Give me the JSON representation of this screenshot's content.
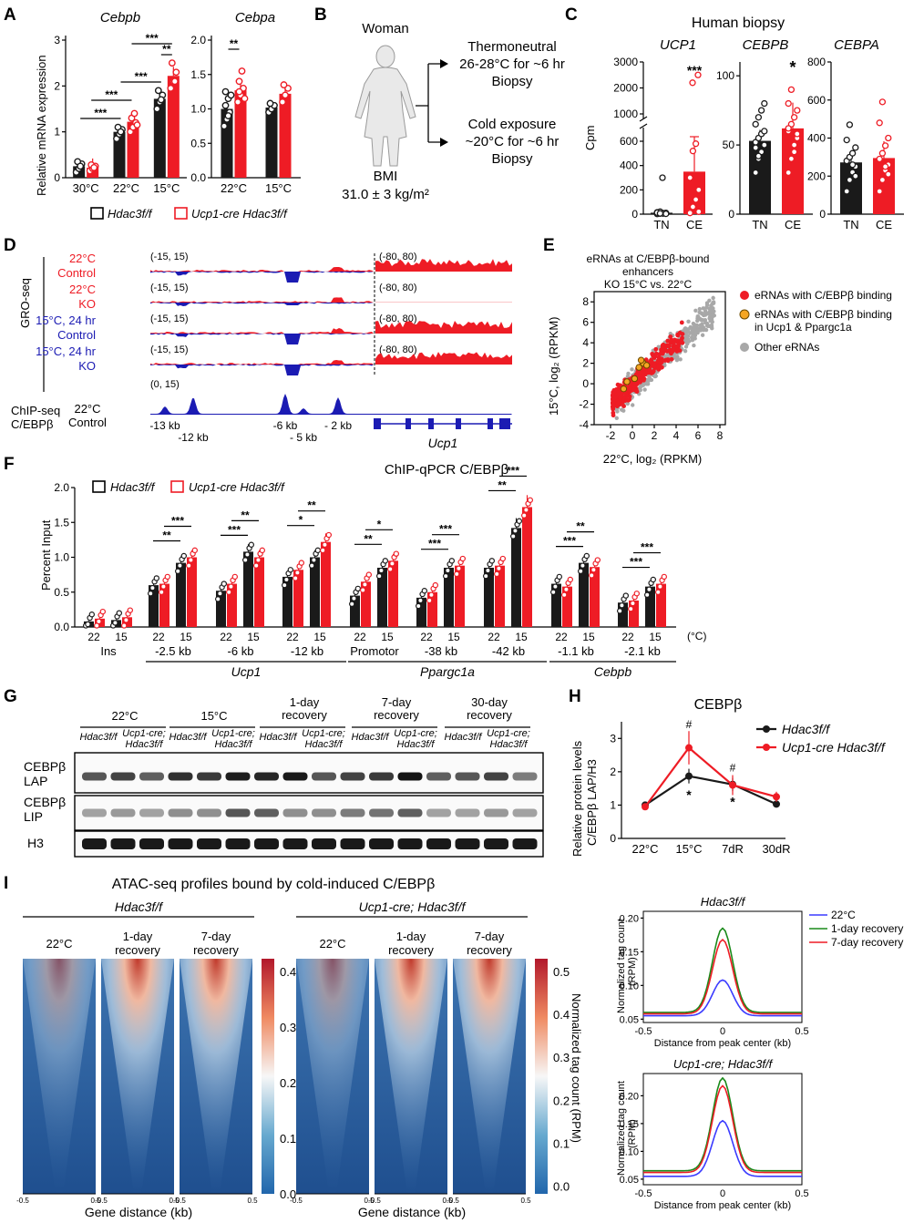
{
  "colors": {
    "black": "#1a1a1a",
    "red": "#ee1c25",
    "blue": "#1b1bb3",
    "grey": "#a8a8a8"
  },
  "panelA": {
    "letter": "A",
    "ylabel": "Relative mRNA expression",
    "legend": [
      "Hdac3f/f",
      "Ucp1-cre Hdac3f/f"
    ],
    "cebpb": {
      "title": "Cebpb",
      "yticks": [
        "0",
        "1",
        "2",
        "3"
      ],
      "ylim": [
        0,
        3
      ],
      "groups": [
        "30°C",
        "22°C",
        "15°C"
      ],
      "black": [
        0.25,
        1.0,
        1.72
      ],
      "red": [
        0.22,
        1.22,
        2.22
      ],
      "black_pts": [
        [
          0.12,
          0.2,
          0.3,
          0.35,
          0.25
        ],
        [
          0.85,
          0.95,
          1.05,
          1.1,
          1.0
        ],
        [
          1.5,
          1.65,
          1.8,
          1.9,
          1.7
        ]
      ],
      "red_pts": [
        [
          0.15,
          0.2,
          0.25,
          0.28,
          0.22
        ],
        [
          1.0,
          1.1,
          1.2,
          1.3,
          1.4,
          1.15
        ],
        [
          1.95,
          2.1,
          2.3,
          2.5,
          2.1
        ]
      ],
      "sig": [
        "***",
        "***",
        "***",
        "***",
        "**"
      ]
    },
    "cebpa": {
      "title": "Cebpa",
      "yticks": [
        "0.0",
        "0.5",
        "1.0",
        "1.5",
        "2.0"
      ],
      "ylim": [
        0,
        2
      ],
      "groups": [
        "22°C",
        "15°C"
      ],
      "black": [
        1.0,
        1.02
      ],
      "red": [
        1.27,
        1.22
      ],
      "black_pts": [
        [
          0.75,
          0.85,
          0.95,
          1.05,
          1.15,
          1.2,
          1.25,
          0.9
        ],
        [
          0.95,
          1.0,
          1.05,
          1.08
        ]
      ],
      "red_pts": [
        [
          1.1,
          1.2,
          1.3,
          1.4,
          1.55,
          1.15,
          1.25
        ],
        [
          1.1,
          1.2,
          1.3,
          1.35
        ]
      ],
      "sig": [
        "**"
      ]
    }
  },
  "panelB": {
    "letter": "B",
    "subject": "Woman",
    "bmi_label": "BMI",
    "bmi_value": "31.0 ± 3 kg/m²",
    "arm1": [
      "Thermoneutral",
      "26-28°C for ~6 hr",
      "Biopsy"
    ],
    "arm2": [
      "Cold exposure",
      "~20°C for ~6 hr",
      "Biopsy"
    ]
  },
  "panelC": {
    "letter": "C",
    "title": "Human biopsy",
    "ylabel": "Cpm",
    "groups": [
      "TN",
      "CE"
    ],
    "ucp1": {
      "title": "UCP1",
      "yticks_low": [
        "0",
        "200",
        "400",
        "600"
      ],
      "yticks_high": [
        "1000",
        "2000",
        "3000"
      ],
      "values": [
        12,
        350
      ],
      "sig": "***"
    },
    "cebpb": {
      "title": "CEBPB",
      "yticks": [
        "0",
        "50",
        "100"
      ],
      "ylim": [
        0,
        110
      ],
      "values": [
        53,
        62
      ],
      "sig": "*"
    },
    "cebpa": {
      "title": "CEBPA",
      "yticks": [
        "0",
        "200",
        "400",
        "600",
        "800"
      ],
      "ylim": [
        0,
        800
      ],
      "values": [
        272,
        295
      ]
    }
  },
  "panelD": {
    "letter": "D",
    "side_label": "GRO-seq",
    "tracks": [
      {
        "l1": "22°C",
        "l2": "Control",
        "color": "red",
        "range_left": "(-15, 15)",
        "range_right": "(-80, 80)"
      },
      {
        "l1": "22°C",
        "l2": "KO",
        "color": "red",
        "range_left": "(-15, 15)",
        "range_right": "(-80, 80)"
      },
      {
        "l1": "15°C, 24 hr",
        "l2": "Control",
        "color": "blue",
        "range_left": "(-15, 15)",
        "range_right": "(-80, 80)"
      },
      {
        "l1": "15°C, 24 hr",
        "l2": "KO",
        "color": "blue",
        "range_left": "(-15, 15)",
        "range_right": "(-80, 80)"
      }
    ],
    "chip_range": "(0, 15)",
    "chip_label": [
      "ChIP-seq",
      "C/EBPβ"
    ],
    "chip_cond": [
      "22°C",
      "Control"
    ],
    "positions_top": [
      "-13 kb",
      "-6 kb",
      "- 2 kb"
    ],
    "positions_bottom": [
      "-12 kb",
      "- 5 kb"
    ],
    "gene": "Ucp1"
  },
  "panelE": {
    "letter": "E",
    "title": [
      "eRNAs at C/EBPβ-bound",
      "enhancers",
      "KO 15°C vs. 22°C"
    ],
    "xlabel": "22°C, log₂ (RPKM)",
    "ylabel": "15°C, log₂ (RPKM)",
    "ticks": [
      "-2",
      "0",
      "2",
      "4",
      "6",
      "8"
    ],
    "yticks": [
      "-4",
      "-2",
      "0",
      "2",
      "4",
      "6",
      "8"
    ],
    "legend": [
      "eRNAs with C/EBPβ binding",
      "eRNAs with C/EBPβ binding",
      "in Ucp1 & Ppargc1a",
      "Other eRNAs"
    ]
  },
  "panelF": {
    "letter": "F",
    "title": "ChIP-qPCR C/EBPβ",
    "ylabel": "Percent Input",
    "legend": [
      "Hdac3f/f",
      "Ucp1-cre Hdac3f/f"
    ],
    "yticks": [
      "0.0",
      "0.5",
      "1.0",
      "1.5",
      "2.0"
    ],
    "ylim": [
      0,
      2
    ],
    "unit": "(°C)",
    "temps": [
      "22",
      "15"
    ],
    "sites": [
      {
        "label": "Ins",
        "black": [
          0.08,
          0.1
        ],
        "red": [
          0.12,
          0.14
        ],
        "sig": []
      },
      {
        "label": "-2.5 kb",
        "black": [
          0.6,
          0.92
        ],
        "red": [
          0.62,
          1.0
        ],
        "sig": [
          "**",
          "***"
        ]
      },
      {
        "label": "-6 kb",
        "black": [
          0.52,
          1.08
        ],
        "red": [
          0.62,
          1.0
        ],
        "sig": [
          "***",
          "**"
        ]
      },
      {
        "label": "-12 kb",
        "black": [
          0.72,
          1.0
        ],
        "red": [
          0.82,
          1.22
        ],
        "sig": [
          "*",
          "**"
        ]
      },
      {
        "label": "Promotor",
        "black": [
          0.45,
          0.85
        ],
        "red": [
          0.65,
          0.95
        ],
        "sig": [
          "**",
          "*"
        ]
      },
      {
        "label": "-38 kb",
        "black": [
          0.42,
          0.85
        ],
        "red": [
          0.5,
          0.88
        ],
        "sig": [
          "***",
          "***"
        ]
      },
      {
        "label": "-42 kb",
        "black": [
          0.85,
          1.42
        ],
        "red": [
          0.88,
          1.72
        ],
        "sig": [
          "**",
          "***"
        ]
      },
      {
        "label": "-1.1 kb",
        "black": [
          0.62,
          0.92
        ],
        "red": [
          0.58,
          0.86
        ],
        "sig": [
          "***",
          "**"
        ]
      },
      {
        "label": "-2.1 kb",
        "black": [
          0.35,
          0.58
        ],
        "red": [
          0.38,
          0.62
        ],
        "sig": [
          "***",
          "***"
        ]
      }
    ],
    "genes": [
      "Ucp1",
      "Ppargc1a",
      "Cebpb"
    ]
  },
  "panelG": {
    "letter": "G",
    "conditions": [
      "22°C",
      "15°C",
      "1-day recovery",
      "7-day recovery",
      "30-day recovery"
    ],
    "genotypes": [
      "Hdac3f/f",
      "Ucp1-cre; Hdac3f/f"
    ],
    "rows": [
      "CEBPβ LAP",
      "CEBPβ LIP",
      "H3"
    ]
  },
  "panelH": {
    "letter": "H",
    "title": "CEBPβ",
    "ylabel": [
      "Relative protein levels",
      "C/EBPβ LAP/H3"
    ],
    "categories": [
      "22°C",
      "15°C",
      "7dR",
      "30dR"
    ],
    "yticks": [
      "0",
      "1",
      "2",
      "3"
    ],
    "ylim": [
      0,
      3.5
    ],
    "series": [
      {
        "name": "Hdac3f/f",
        "values": [
          1.0,
          1.87,
          1.62,
          1.03
        ],
        "err": [
          0.08,
          0.22,
          0.2,
          0.06
        ]
      },
      {
        "name": "Ucp1-cre Hdac3f/f",
        "values": [
          0.95,
          2.72,
          1.6,
          1.25
        ],
        "err": [
          0.06,
          0.5,
          0.3,
          0.15
        ]
      }
    ],
    "marks": {
      "hash": [
        "#",
        "#"
      ],
      "star": [
        "*",
        "*"
      ]
    }
  },
  "panelI": {
    "letter": "I",
    "title": "ATAC-seq profiles bound by cold-induced C/EBPβ",
    "groups": [
      "Hdac3f/f",
      "Ucp1-cre; Hdac3f/f"
    ],
    "columns": [
      "22°C",
      "1-day recovery",
      "7-day recovery"
    ],
    "xlabel": "Gene distance (kb)",
    "xticks": [
      "-0.5",
      "0.5"
    ],
    "scale1": [
      "0.4",
      "0.3",
      "0.2",
      "0.1",
      "0.0"
    ],
    "scale2": [
      "0.5",
      "0.4",
      "0.3",
      "0.2",
      "0.1",
      "0.0"
    ],
    "scale_label": "Normalized tag count (RPM)",
    "profile_ylabel": [
      "Normalized tag count",
      "(RPM)"
    ],
    "profile_xlabel": "Distance from peak center (kb)",
    "profile_xticks": [
      "-0.5",
      "0",
      "0.5"
    ],
    "profile1": {
      "title": "Hdac3f/f",
      "yticks": [
        "0.05",
        "0.10",
        "0.15",
        "0.20"
      ],
      "ylim": [
        0.045,
        0.21
      ],
      "series": [
        {
          "name": "22°C",
          "peak": 0.108,
          "base": 0.055
        },
        {
          "name": "1-day recovery",
          "peak": 0.185,
          "base": 0.06
        },
        {
          "name": "7-day recovery",
          "peak": 0.168,
          "base": 0.058
        }
      ]
    },
    "profile2": {
      "title": "Ucp1-cre; Hdac3f/f",
      "yticks": [
        "0.05",
        "0.10",
        "0.15",
        "0.20"
      ],
      "ylim": [
        0.04,
        0.24
      ],
      "series": [
        {
          "name": "22°C",
          "peak": 0.155,
          "base": 0.055
        },
        {
          "name": "1-day recovery",
          "peak": 0.232,
          "base": 0.065
        },
        {
          "name": "7-day recovery",
          "peak": 0.218,
          "base": 0.062
        }
      ]
    }
  }
}
